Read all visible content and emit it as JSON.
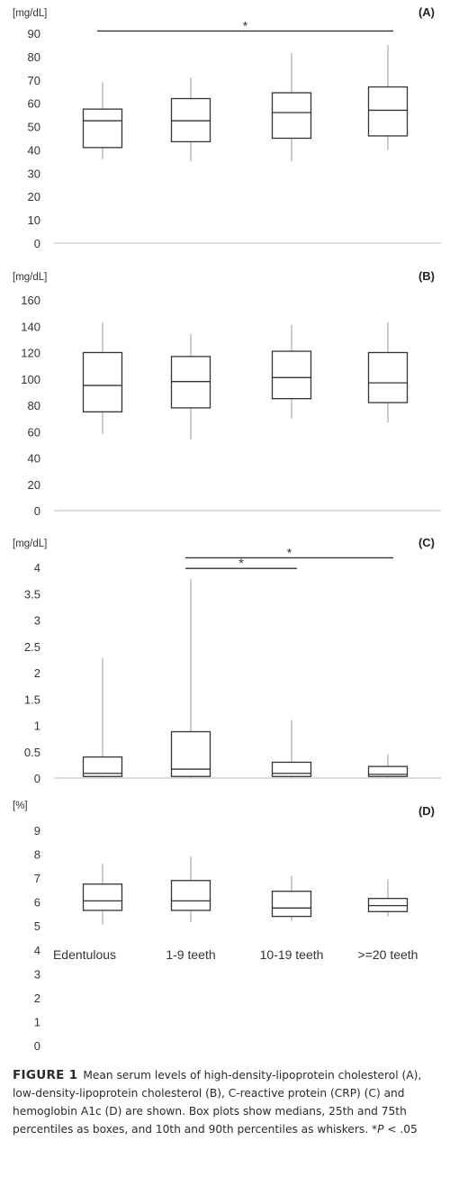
{
  "chart_data": [
    {
      "type": "box",
      "panel_label": "(A)",
      "unit": "[mg/dL]",
      "ylim": [
        0,
        90
      ],
      "yticks": [
        0,
        10,
        20,
        30,
        40,
        50,
        60,
        70,
        80,
        90
      ],
      "ytick_labels": [
        "0",
        "10",
        "20",
        "30",
        "40",
        "50",
        "60",
        "70",
        "80",
        "90"
      ],
      "categories": [
        "Edentulous",
        "1-9 teeth",
        "10-19 teeth",
        ">=20 teeth"
      ],
      "show_category_labels": false,
      "boxes": [
        {
          "low": 36,
          "q1": 41,
          "median": 52.5,
          "q3": 57.5,
          "high": 69
        },
        {
          "low": 35,
          "q1": 43.5,
          "median": 52.5,
          "q3": 62,
          "high": 71
        },
        {
          "low": 35,
          "q1": 45,
          "median": 56,
          "q3": 64.5,
          "high": 81.5
        },
        {
          "low": 40,
          "q1": 46,
          "median": 57,
          "q3": 67,
          "high": 85
        }
      ],
      "significance": [
        {
          "from": 0,
          "to": 3,
          "y": 91,
          "label": "*"
        }
      ]
    },
    {
      "type": "box",
      "panel_label": "(B)",
      "unit": "[mg/dL]",
      "ylim": [
        0,
        160
      ],
      "yticks": [
        0,
        20,
        40,
        60,
        80,
        100,
        120,
        140,
        160
      ],
      "ytick_labels": [
        "0",
        "20",
        "40",
        "60",
        "80",
        "100",
        "120",
        "140",
        "160"
      ],
      "categories": [
        "Edentulous",
        "1-9 teeth",
        "10-19 teeth",
        ">=20 teeth"
      ],
      "show_category_labels": false,
      "boxes": [
        {
          "low": 58,
          "q1": 75,
          "median": 95,
          "q3": 120,
          "high": 143
        },
        {
          "low": 54,
          "q1": 78,
          "median": 98,
          "q3": 117,
          "high": 134
        },
        {
          "low": 70,
          "q1": 85,
          "median": 101,
          "q3": 121,
          "high": 141
        },
        {
          "low": 67,
          "q1": 82,
          "median": 97,
          "q3": 120,
          "high": 143
        }
      ],
      "significance": []
    },
    {
      "type": "box",
      "panel_label": "(C)",
      "unit": "[mg/dL]",
      "ylim": [
        0,
        4
      ],
      "yticks": [
        0,
        0.5,
        1,
        1.5,
        2,
        2.5,
        3,
        3.5,
        4
      ],
      "ytick_labels": [
        "0",
        "0.5",
        "1",
        "1.5",
        "2",
        "2.5",
        "3",
        "3.5",
        "4"
      ],
      "categories": [
        "Edentulous",
        "1-9 teeth",
        "10-19 teeth",
        ">=20 teeth"
      ],
      "show_category_labels": false,
      "boxes": [
        {
          "low": 0.01,
          "q1": 0.03,
          "median": 0.09,
          "q3": 0.4,
          "high": 2.28
        },
        {
          "low": 0.01,
          "q1": 0.03,
          "median": 0.17,
          "q3": 0.88,
          "high": 3.78
        },
        {
          "low": 0.01,
          "q1": 0.03,
          "median": 0.09,
          "q3": 0.3,
          "high": 1.1
        },
        {
          "low": 0.01,
          "q1": 0.03,
          "median": 0.07,
          "q3": 0.22,
          "high": 0.45
        }
      ],
      "significance": [
        {
          "from": 1,
          "to": 3,
          "y": 4.18,
          "label": "*"
        },
        {
          "from": 1,
          "to": 2,
          "y": 3.98,
          "label": "*"
        }
      ]
    },
    {
      "type": "box",
      "panel_label": "(D)",
      "unit": "[%]",
      "ylim": [
        0,
        9
      ],
      "yticks": [
        0,
        1,
        2,
        3,
        4,
        5,
        6,
        7,
        8,
        9
      ],
      "ytick_labels": [
        "0",
        "1",
        "2",
        "3",
        "4",
        "5",
        "6",
        "7",
        "8",
        "9"
      ],
      "categories": [
        "Edentulous",
        "1-9 teeth",
        "10-19 teeth",
        ">=20 teeth"
      ],
      "show_category_labels": true,
      "boxes": [
        {
          "low": 5.05,
          "q1": 5.65,
          "median": 6.05,
          "q3": 6.75,
          "high": 7.6
        },
        {
          "low": 5.15,
          "q1": 5.65,
          "median": 6.05,
          "q3": 6.9,
          "high": 7.9
        },
        {
          "low": 5.2,
          "q1": 5.4,
          "median": 5.75,
          "q3": 6.45,
          "high": 7.1
        },
        {
          "low": 5.4,
          "q1": 5.6,
          "median": 5.85,
          "q3": 6.15,
          "high": 6.95
        }
      ],
      "significance": []
    }
  ],
  "caption": {
    "label": "FIGURE 1",
    "text": "Mean serum levels of high-density-lipoprotein cholesterol (A), low-density-lipoprotein cholesterol (B), C-reactive protein (CRP) (C) and hemoglobin A1c (D) are shown. Box plots show medians, 25th and 75th percentiles as boxes, and 10th and 90th percentiles as whiskers. *",
    "p_symbol": "P",
    "p_value": " < .05"
  }
}
